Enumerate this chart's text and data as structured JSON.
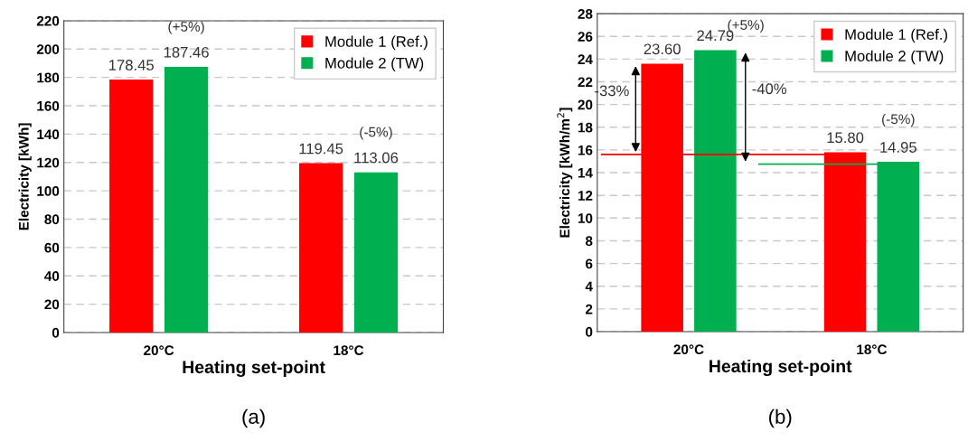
{
  "chart_data": [
    {
      "type": "bar",
      "categories": [
        "20°C",
        "18°C"
      ],
      "xlabel": "Heating set-point",
      "ylabel": "Electricity [kWh]",
      "ylim": [
        0,
        220
      ],
      "yticks": [
        0,
        20,
        40,
        60,
        80,
        100,
        120,
        140,
        160,
        180,
        200,
        220
      ],
      "grid": "y",
      "legend": "top right",
      "series": [
        {
          "name": "Module 1 (Ref.)",
          "color": "#ff0000",
          "values": [
            178.45,
            119.45
          ],
          "value_labels": [
            "178.45",
            "119.45"
          ]
        },
        {
          "name": "Module 2 (TW)",
          "color": "#00b050",
          "values": [
            187.46,
            113.06
          ],
          "value_labels": [
            "187.46",
            "113.06"
          ]
        }
      ],
      "annotations": [
        "(+5%)",
        "(-5%)",
        "(a)"
      ]
    },
    {
      "type": "bar",
      "categories": [
        "20°C",
        "18°C"
      ],
      "xlabel": "Heating set-point",
      "ylabel": "Electricity [kWh/m$^{2}$]",
      "ylim": [
        0,
        28
      ],
      "yticks": [
        0,
        2,
        4,
        6,
        8,
        10,
        12,
        14,
        16,
        18,
        20,
        22,
        24,
        26,
        28
      ],
      "grid": "y",
      "legend": "top right",
      "series": [
        {
          "name": "Module 1 (Ref.)",
          "color": "#ff0000",
          "values": [
            23.6,
            15.8
          ],
          "value_labels": [
            "23.60",
            "15.80"
          ]
        },
        {
          "name": "Module 2 (TW)",
          "color": "#00b050",
          "values": [
            24.79,
            14.95
          ],
          "value_labels": [
            "24.79",
            "14.95"
          ]
        }
      ],
      "ref_lines": [
        {
          "axis": "y",
          "value": 15.6,
          "color": "#ff0000"
        },
        {
          "axis": "y",
          "value": 14.75,
          "color": "#00b050"
        }
      ],
      "annotations": [
        "(+5%)",
        "(-5%)",
        "-33%",
        "-40%",
        "(b)"
      ]
    }
  ]
}
